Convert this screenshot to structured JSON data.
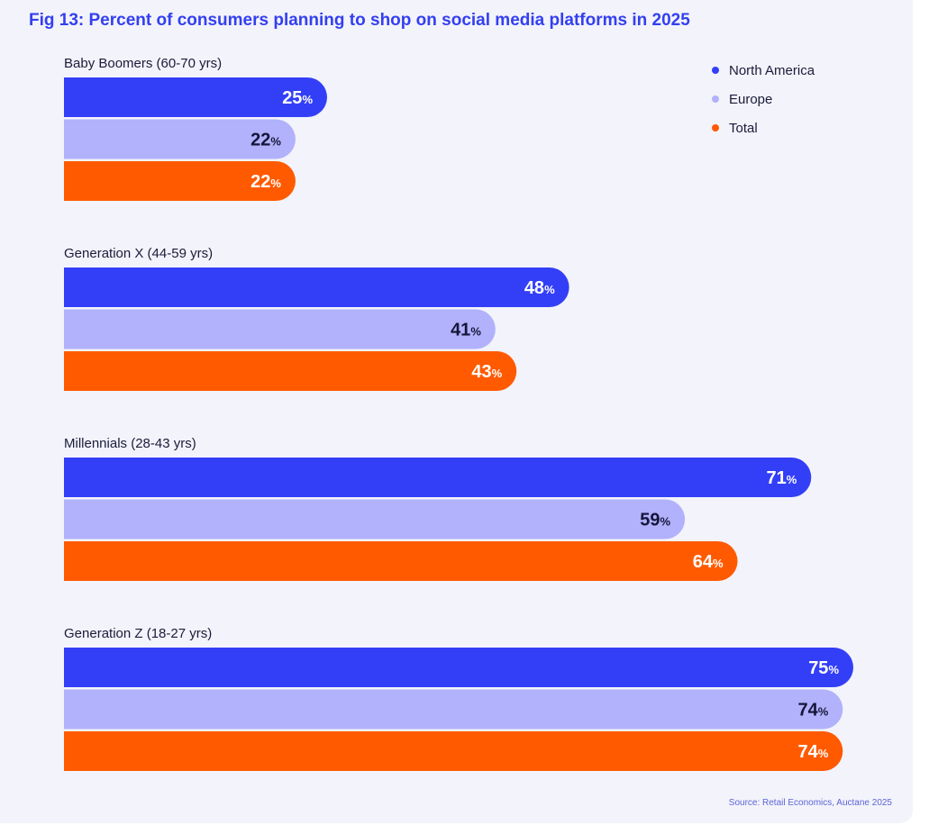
{
  "title": "Fig 13: Percent of consumers planning to shop on social media platforms in 2025",
  "source": "Source: Retail Economics, Auctane 2025",
  "colors": {
    "north_america": "#333ff7",
    "europe": "#b1b2fb",
    "total": "#ff5a00"
  },
  "chart_data": {
    "type": "bar",
    "orientation": "horizontal",
    "value_suffix": "%",
    "categories": [
      "Baby Boomers (60-70 yrs)",
      "Generation X (44-59 yrs)",
      "Millennials (28-43 yrs)",
      "Generation Z (18-27 yrs)"
    ],
    "series": [
      {
        "name": "North America",
        "color": "#333ff7",
        "label_color": "#ffffff",
        "values": [
          25,
          48,
          71,
          75
        ]
      },
      {
        "name": "Europe",
        "color": "#b1b2fb",
        "label_color": "#15153a",
        "values": [
          22,
          41,
          59,
          74
        ]
      },
      {
        "name": "Total",
        "color": "#ff5a00",
        "label_color": "#ffffff",
        "values": [
          22,
          43,
          64,
          74
        ]
      }
    ],
    "legend_position": "top-right",
    "grid": false,
    "xlim": [
      0,
      75
    ]
  }
}
